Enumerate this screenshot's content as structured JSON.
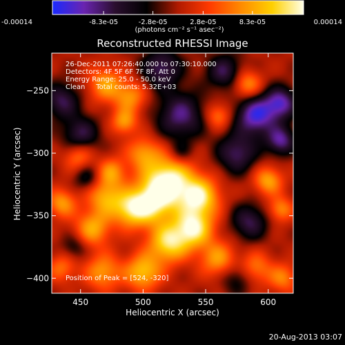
{
  "colorbar": {
    "tick_labels": [
      "-0.00014",
      "-8.3e-05",
      "-2.8e-05",
      "2.8e-05",
      "8.3e-05",
      "0.00014"
    ],
    "ticks": [
      -0.00014,
      -8.3e-05,
      -2.8e-05,
      2.8e-05,
      8.3e-05,
      0.00014
    ],
    "unit_label": "(photons cm⁻² s⁻¹ asec⁻²)",
    "stops": [
      "#1a2aff",
      "#6a24b0",
      "#2a0e2e",
      "#000000",
      "#b01a00",
      "#ff3a00",
      "#ff8a00",
      "#ffd000",
      "#ffffe8"
    ]
  },
  "chart_data": {
    "type": "heatmap",
    "title": "Reconstructed RHESSI Image",
    "xlabel": "Heliocentric X (arcsec)",
    "ylabel": "Heliocentric Y (arcsec)",
    "xlim": [
      427,
      620
    ],
    "ylim": [
      -412,
      -220
    ],
    "xticks": [
      450,
      500,
      550,
      600
    ],
    "yticks": [
      -250,
      -300,
      -350,
      -400
    ],
    "xtick_labels": [
      "450",
      "500",
      "550",
      "600"
    ],
    "ytick_labels": [
      "−250",
      "−300",
      "−350",
      "−400"
    ],
    "peak": [
      524,
      -320
    ],
    "blobs": [
      {
        "x": 520,
        "y": -322,
        "amp": 1.0,
        "s": 14
      },
      {
        "x": 507,
        "y": -340,
        "amp": 0.75,
        "s": 12
      },
      {
        "x": 545,
        "y": -335,
        "amp": 0.85,
        "s": 11
      },
      {
        "x": 540,
        "y": -360,
        "amp": 0.9,
        "s": 11
      },
      {
        "x": 520,
        "y": -372,
        "amp": 0.8,
        "s": 11
      },
      {
        "x": 490,
        "y": -345,
        "amp": 0.7,
        "s": 10
      },
      {
        "x": 470,
        "y": -335,
        "amp": 0.6,
        "s": 10
      },
      {
        "x": 460,
        "y": -360,
        "amp": 0.6,
        "s": 10
      },
      {
        "x": 475,
        "y": -315,
        "amp": 0.5,
        "s": 8
      },
      {
        "x": 448,
        "y": -302,
        "amp": 0.45,
        "s": 8
      },
      {
        "x": 435,
        "y": -340,
        "amp": 0.55,
        "s": 8
      },
      {
        "x": 500,
        "y": -395,
        "amp": 0.7,
        "s": 10
      },
      {
        "x": 468,
        "y": -395,
        "amp": 0.55,
        "s": 10
      },
      {
        "x": 560,
        "y": -385,
        "amp": 0.55,
        "s": 10
      },
      {
        "x": 500,
        "y": -300,
        "amp": 0.5,
        "s": 9
      },
      {
        "x": 470,
        "y": -245,
        "amp": 0.55,
        "s": 10
      },
      {
        "x": 490,
        "y": -255,
        "amp": 0.5,
        "s": 9
      },
      {
        "x": 485,
        "y": -275,
        "amp": 0.55,
        "s": 7
      },
      {
        "x": 560,
        "y": -270,
        "amp": 0.45,
        "s": 7
      },
      {
        "x": 583,
        "y": -245,
        "amp": 0.55,
        "s": 8
      },
      {
        "x": 600,
        "y": -322,
        "amp": 0.6,
        "s": 8
      },
      {
        "x": 610,
        "y": -345,
        "amp": 0.5,
        "s": 7
      },
      {
        "x": 590,
        "y": -392,
        "amp": 0.45,
        "s": 9
      },
      {
        "x": 612,
        "y": -400,
        "amp": 0.45,
        "s": 8
      },
      {
        "x": 435,
        "y": -392,
        "amp": 0.4,
        "s": 8
      },
      {
        "x": 435,
        "y": -258,
        "amp": -0.55,
        "s": 10
      },
      {
        "x": 450,
        "y": -285,
        "amp": -0.55,
        "s": 10
      },
      {
        "x": 455,
        "y": -320,
        "amp": -0.35,
        "s": 7
      },
      {
        "x": 530,
        "y": -270,
        "amp": -0.65,
        "s": 13
      },
      {
        "x": 515,
        "y": -232,
        "amp": -0.6,
        "s": 11
      },
      {
        "x": 565,
        "y": -235,
        "amp": -0.55,
        "s": 10
      },
      {
        "x": 590,
        "y": -270,
        "amp": -0.85,
        "s": 11
      },
      {
        "x": 610,
        "y": -260,
        "amp": -0.75,
        "s": 9
      },
      {
        "x": 575,
        "y": -300,
        "amp": -0.6,
        "s": 11
      },
      {
        "x": 610,
        "y": -290,
        "amp": -0.7,
        "s": 8
      },
      {
        "x": 585,
        "y": -355,
        "amp": -0.55,
        "s": 10
      },
      {
        "x": 575,
        "y": -400,
        "amp": -0.35,
        "s": 9
      },
      {
        "x": 530,
        "y": -300,
        "amp": -0.3,
        "s": 7
      },
      {
        "x": 445,
        "y": -375,
        "amp": -0.3,
        "s": 7
      }
    ]
  },
  "info_lines": [
    "26-Dec-2011 07:26:40.000 to 07:30:10.000",
    "Detectors: 4F 5F 6F 7F 8F, Att 0",
    "Energy Range: 25.0 - 50.0 keV",
    "Clean     Total counts: 5.32E+03"
  ],
  "peak_label": "Position of Peak = [524, -320]",
  "timestamp": "20-Aug-2013 03:07"
}
